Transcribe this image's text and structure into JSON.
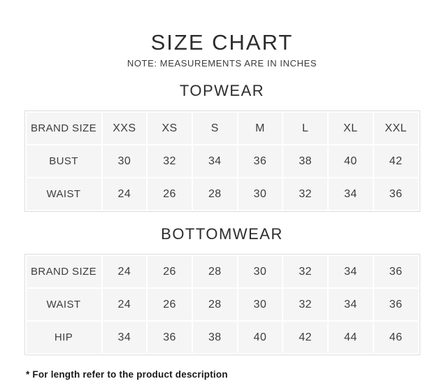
{
  "page": {
    "title": "SIZE CHART",
    "subtitle": "NOTE: MEASUREMENTS ARE IN INCHES",
    "footnote": "* For length refer to the product description"
  },
  "colors": {
    "cell_background": "#f5f5f5",
    "grid_line": "#ffffff",
    "table_border": "#dcdcdc",
    "text": "#3d3d3d",
    "footnote_text": "#191919"
  },
  "chart_data": [
    {
      "type": "table",
      "title": "TOPWEAR",
      "rows": [
        [
          "BRAND SIZE",
          "XXS",
          "XS",
          "S",
          "M",
          "L",
          "XL",
          "XXL"
        ],
        [
          "BUST",
          "30",
          "32",
          "34",
          "36",
          "38",
          "40",
          "42"
        ],
        [
          "WAIST",
          "24",
          "26",
          "28",
          "30",
          "32",
          "34",
          "36"
        ]
      ]
    },
    {
      "type": "table",
      "title": "BOTTOMWEAR",
      "rows": [
        [
          "BRAND SIZE",
          "24",
          "26",
          "28",
          "30",
          "32",
          "34",
          "36"
        ],
        [
          "WAIST",
          "24",
          "26",
          "28",
          "30",
          "32",
          "34",
          "36"
        ],
        [
          "HIP",
          "34",
          "36",
          "38",
          "40",
          "42",
          "44",
          "46"
        ]
      ]
    }
  ]
}
